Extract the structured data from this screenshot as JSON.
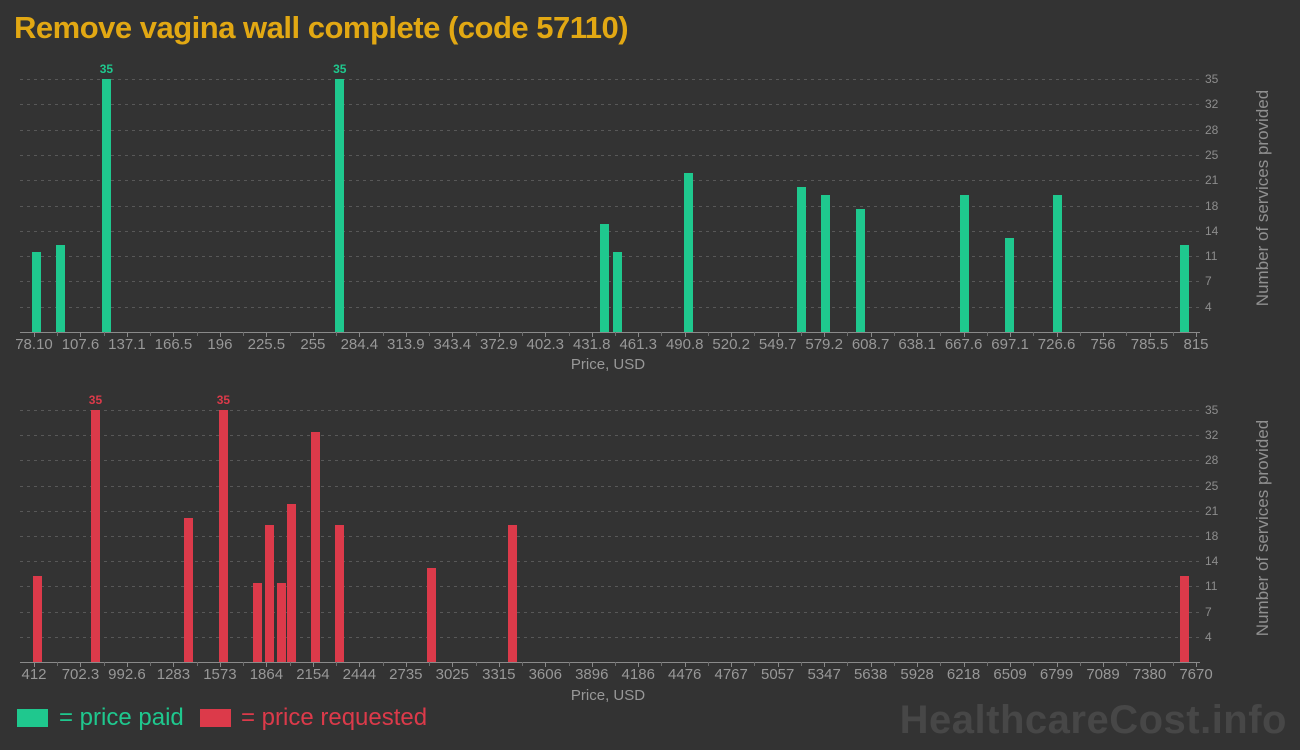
{
  "page": {
    "title": "Remove vagina wall complete (code 57110)",
    "watermark": "HealthcareCost.info"
  },
  "colors": {
    "background": "#333333",
    "title": "#e2a813",
    "paid": "#1fc88e",
    "requested": "#dc3a4a",
    "axis_text": "#989898",
    "grid": "#585858",
    "watermark": "#474747"
  },
  "legend": {
    "paid_label": "= price paid",
    "requested_label": "= price requested"
  },
  "chart_data": [
    {
      "type": "bar",
      "series_name": "price paid",
      "color_key": "paid",
      "xlabel": "Price, USD",
      "ylabel": "Number of services provided",
      "x_range": [
        78.1,
        815
      ],
      "x_tick_labels": [
        "78.10",
        "107.6",
        "137.1",
        "166.5",
        "196",
        "225.5",
        "255",
        "284.4",
        "313.9",
        "343.4",
        "372.9",
        "402.3",
        "431.8",
        "461.3",
        "490.8",
        "520.2",
        "549.7",
        "579.2",
        "608.7",
        "638.1",
        "667.6",
        "697.1",
        "726.6",
        "756",
        "785.5",
        "815"
      ],
      "y_max": 35,
      "y_tick_values": [
        3.5,
        7,
        10.5,
        14,
        17.5,
        21,
        24.5,
        28,
        31.5,
        35
      ],
      "y_tick_labels": [
        "4",
        "7",
        "11",
        "14",
        "18",
        "21",
        "25",
        "28",
        "32",
        "35"
      ],
      "grid": true,
      "legend_position": "bottom",
      "bars": [
        {
          "x": 80,
          "y": 11
        },
        {
          "x": 95,
          "y": 12
        },
        {
          "x": 124,
          "y": 35,
          "label": "35"
        },
        {
          "x": 272,
          "y": 35,
          "label": "35"
        },
        {
          "x": 440,
          "y": 15
        },
        {
          "x": 448,
          "y": 11
        },
        {
          "x": 493,
          "y": 22
        },
        {
          "x": 565,
          "y": 20
        },
        {
          "x": 580,
          "y": 19
        },
        {
          "x": 602,
          "y": 17
        },
        {
          "x": 668,
          "y": 19
        },
        {
          "x": 697,
          "y": 13
        },
        {
          "x": 727,
          "y": 19
        },
        {
          "x": 808,
          "y": 12
        }
      ]
    },
    {
      "type": "bar",
      "series_name": "price requested",
      "color_key": "requested",
      "xlabel": "Price, USD",
      "ylabel": "Number of services provided",
      "x_range": [
        412,
        7670
      ],
      "x_tick_labels": [
        "412",
        "702.3",
        "992.6",
        "1283",
        "1573",
        "1864",
        "2154",
        "2444",
        "2735",
        "3025",
        "3315",
        "3606",
        "3896",
        "4186",
        "4476",
        "4767",
        "5057",
        "5347",
        "5638",
        "5928",
        "6218",
        "6509",
        "6799",
        "7089",
        "7380",
        "7670"
      ],
      "y_max": 35,
      "y_tick_values": [
        3.5,
        7,
        10.5,
        14,
        17.5,
        21,
        24.5,
        28,
        31.5,
        35
      ],
      "y_tick_labels": [
        "4",
        "7",
        "11",
        "14",
        "18",
        "21",
        "25",
        "28",
        "32",
        "35"
      ],
      "grid": true,
      "legend_position": "bottom",
      "bars": [
        {
          "x": 434,
          "y": 12
        },
        {
          "x": 796,
          "y": 35,
          "label": "35"
        },
        {
          "x": 1376,
          "y": 20
        },
        {
          "x": 1595,
          "y": 35,
          "label": "35"
        },
        {
          "x": 1811,
          "y": 11
        },
        {
          "x": 1886,
          "y": 19
        },
        {
          "x": 1960,
          "y": 11
        },
        {
          "x": 2023,
          "y": 22
        },
        {
          "x": 2173,
          "y": 32
        },
        {
          "x": 2323,
          "y": 19
        },
        {
          "x": 2894,
          "y": 13
        },
        {
          "x": 3403,
          "y": 19
        },
        {
          "x": 7600,
          "y": 12
        }
      ]
    }
  ]
}
